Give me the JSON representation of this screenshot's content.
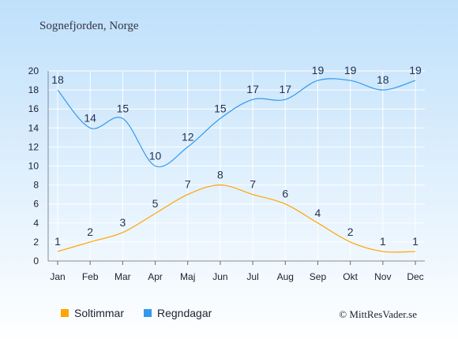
{
  "title": "Sognefjorden, Norge",
  "copyright": "© MittResVader.se",
  "colors": {
    "background_top": "#bfe0fb",
    "background_bottom": "#ffffff",
    "soltimmar": "#ffa500",
    "regndagar": "#3399ee",
    "grid": "#ffffff"
  },
  "chart_data": {
    "type": "line",
    "categories": [
      "Jan",
      "Feb",
      "Mar",
      "Apr",
      "Maj",
      "Jun",
      "Jul",
      "Aug",
      "Sep",
      "Okt",
      "Nov",
      "Dec"
    ],
    "ylim": [
      0,
      20
    ],
    "yticks": [
      0,
      2,
      4,
      6,
      8,
      10,
      12,
      14,
      16,
      18,
      20
    ],
    "grid": true,
    "legend_position": "bottom",
    "series": [
      {
        "name": "Soltimmar",
        "color": "#ffa500",
        "values": [
          1,
          2,
          3,
          5,
          7,
          8,
          7,
          6,
          4,
          2,
          1,
          1
        ]
      },
      {
        "name": "Regndagar",
        "color": "#3399ee",
        "values": [
          18,
          14,
          15,
          10,
          12,
          15,
          17,
          17,
          19,
          19,
          18,
          19
        ]
      }
    ]
  }
}
